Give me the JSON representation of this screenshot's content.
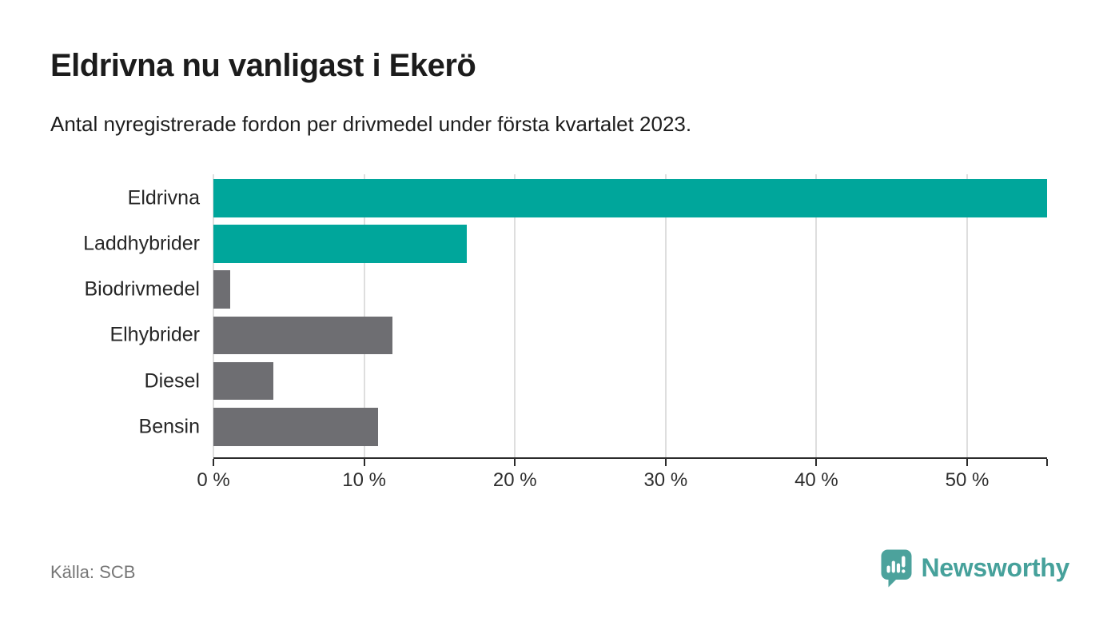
{
  "header": {
    "title": "Eldrivna nu vanligast i Ekerö",
    "subtitle": "Antal nyregistrerade fordon per drivmedel under första kvartalet 2023."
  },
  "chart_data": {
    "type": "bar",
    "orientation": "horizontal",
    "title": "Eldrivna nu vanligast i Ekerö",
    "subtitle": "Antal nyregistrerade fordon per drivmedel under första kvartalet 2023.",
    "categories": [
      "Eldrivna",
      "Laddhybrider",
      "Biodrivmedel",
      "Elhybrider",
      "Diesel",
      "Bensin"
    ],
    "values": [
      55.3,
      16.8,
      1.1,
      11.9,
      4.0,
      10.9
    ],
    "unit": "%",
    "xlim": [
      0,
      55.3
    ],
    "ticks": [
      {
        "value": 0,
        "label": "0 %"
      },
      {
        "value": 10,
        "label": "10 %"
      },
      {
        "value": 20,
        "label": "20 %"
      },
      {
        "value": 30,
        "label": "30 %"
      },
      {
        "value": 40,
        "label": "40 %"
      },
      {
        "value": 50,
        "label": "50 %"
      }
    ],
    "end_tick_at_max": true,
    "gridlines": true,
    "legend": "none",
    "bar_colors": [
      "highlight",
      "highlight",
      "base",
      "base",
      "base",
      "base"
    ],
    "palette": {
      "highlight": "#00a69b",
      "base": "#6e6e72"
    }
  },
  "colors": {
    "axis": "#2b2b2b",
    "grid": "#dedede",
    "tick_text": "#2e2e2e",
    "category_text": "#262626",
    "muted_text": "#767676",
    "brand_teal": "#46a19b",
    "logo_teal": "#4ca29c"
  },
  "footer": {
    "source": "Källa: SCB",
    "brand": "Newsworthy"
  }
}
